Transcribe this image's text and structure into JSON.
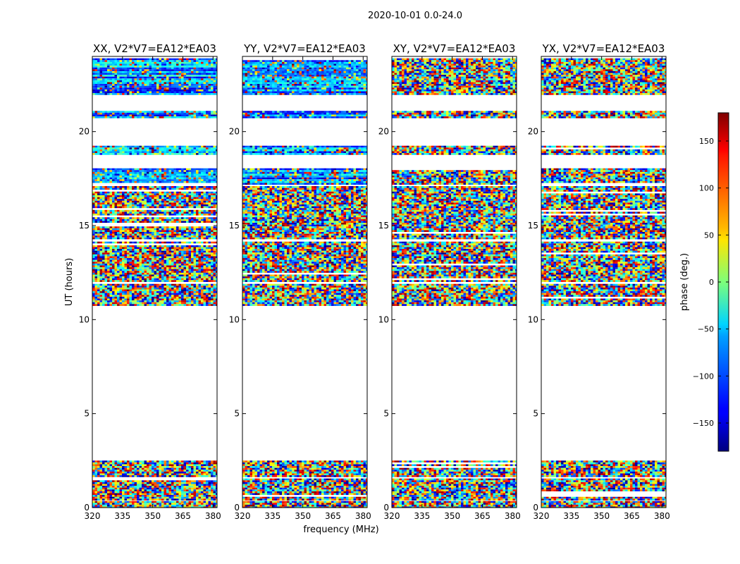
{
  "figure": {
    "suptitle": "2020-10-01 0.0-24.0"
  },
  "chart_data": {
    "type": "heatmap",
    "xlabel": "frequency (MHz)",
    "ylabel": "UT (hours)",
    "xlim": [
      320,
      382
    ],
    "ylim": [
      0,
      24
    ],
    "xticks": [
      320,
      335,
      350,
      365,
      380
    ],
    "yticks": [
      0,
      5,
      10,
      15,
      20
    ],
    "panels": [
      {
        "title": "XX, V2*V7=EA12*EA03",
        "polarization": "XX"
      },
      {
        "title": "YY, V2*V7=EA12*EA03",
        "polarization": "YY"
      },
      {
        "title": "XY, V2*V7=EA12*EA03",
        "polarization": "XY"
      },
      {
        "title": "YX, V2*V7=EA12*EA03",
        "polarization": "YX"
      }
    ],
    "data_hour_bands": [
      [
        0.05,
        0.35
      ],
      [
        0.45,
        1.55
      ],
      [
        1.65,
        2.5
      ],
      [
        10.8,
        11.9
      ],
      [
        12.05,
        14.15
      ],
      [
        14.3,
        17.1
      ],
      [
        17.2,
        18.05
      ],
      [
        18.8,
        19.25
      ],
      [
        20.8,
        21.1
      ],
      [
        22.0,
        23.9
      ]
    ],
    "colorbar": {
      "label": "phase (deg.)",
      "range": [
        -180,
        180
      ],
      "ticks": [
        -150,
        -100,
        -50,
        0,
        50,
        100,
        150
      ],
      "colormap": "jet"
    }
  }
}
